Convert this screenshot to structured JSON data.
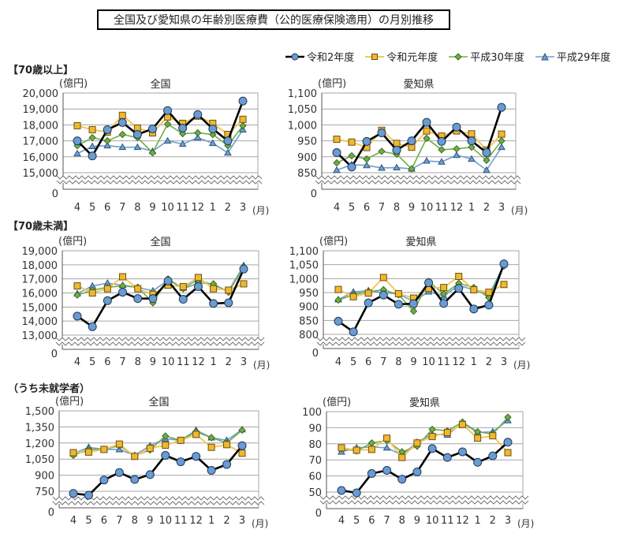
{
  "title": "全国及び愛知県の年齢別医療費（公的医療保険適用）の月別推移",
  "sections": [
    "【70歳以上】",
    "【70歳未満】",
    "（うち未就学者）"
  ],
  "legend": [
    {
      "name": "令和2年度",
      "color": "#000000",
      "marker": "circle",
      "marker_color": "#6a9bd1"
    },
    {
      "name": "令和元年度",
      "color": "#f4c75a",
      "marker": "square",
      "marker_color": "#f0b82e"
    },
    {
      "name": "平成30年度",
      "color": "#70ad47",
      "marker": "diamond",
      "marker_color": "#70ad47"
    },
    {
      "name": "平成29年度",
      "color": "#6f9fd0",
      "marker": "triangle",
      "marker_color": "#6f9fd0"
    }
  ],
  "chart_data": [
    {
      "type": "line",
      "section": "【70歳以上】",
      "title": "全国",
      "ylabel": "(億円)",
      "xlabel": "(月)",
      "categories": [
        "4",
        "5",
        "6",
        "7",
        "8",
        "9",
        "10",
        "11",
        "12",
        "1",
        "2",
        "3"
      ],
      "yticks": [
        "20,000",
        "19,000",
        "18,000",
        "17,000",
        "16,000",
        "15,000"
      ],
      "ymin_label": "0",
      "ylim": [
        15000,
        20000
      ],
      "axis_break": true,
      "grid": true,
      "series": [
        {
          "name": "令和2年度",
          "values": [
            17000,
            16050,
            17700,
            18150,
            17400,
            17750,
            18900,
            17800,
            18650,
            17750,
            17000,
            19500
          ]
        },
        {
          "name": "令和元年度",
          "values": [
            17950,
            17700,
            17550,
            18600,
            17800,
            17500,
            18500,
            18100,
            18550,
            18100,
            17400,
            18350
          ]
        },
        {
          "name": "平成30年度",
          "values": [
            16700,
            17200,
            17000,
            17400,
            17200,
            16250,
            18050,
            17450,
            17500,
            17400,
            16700,
            17950
          ]
        },
        {
          "name": "平成29年度",
          "values": [
            16200,
            16650,
            16700,
            16600,
            16600,
            16350,
            17000,
            16800,
            17200,
            16850,
            16250,
            17700
          ]
        }
      ]
    },
    {
      "type": "line",
      "section": "【70歳以上】",
      "title": "愛知県",
      "ylabel": "(億円)",
      "xlabel": "(月)",
      "categories": [
        "4",
        "5",
        "6",
        "7",
        "8",
        "9",
        "10",
        "11",
        "12",
        "1",
        "2",
        "3"
      ],
      "yticks": [
        "1,100",
        "1,050",
        "1,000",
        "950",
        "900",
        "850"
      ],
      "ymin_label": "0",
      "ylim": [
        850,
        1100
      ],
      "axis_break": true,
      "grid": true,
      "series": [
        {
          "name": "令和2年度",
          "values": [
            913,
            868,
            948,
            975,
            921,
            950,
            1008,
            948,
            993,
            950,
            913,
            1055
          ]
        },
        {
          "name": "令和元年度",
          "values": [
            955,
            946,
            929,
            983,
            942,
            930,
            981,
            965,
            981,
            972,
            921,
            971
          ]
        },
        {
          "name": "平成30年度",
          "values": [
            881,
            903,
            893,
            917,
            908,
            862,
            958,
            922,
            925,
            930,
            889,
            950
          ]
        },
        {
          "name": "平成29年度",
          "values": [
            858,
            875,
            873,
            865,
            866,
            862,
            887,
            884,
            905,
            893,
            858,
            930
          ]
        }
      ]
    },
    {
      "type": "line",
      "section": "【70歳未満】",
      "title": "全国",
      "ylabel": "(億円)",
      "xlabel": "(月)",
      "categories": [
        "4",
        "5",
        "6",
        "7",
        "8",
        "9",
        "10",
        "11",
        "12",
        "1",
        "2",
        "3"
      ],
      "yticks": [
        "19,000",
        "18,000",
        "17,000",
        "16,000",
        "15,000",
        "14,000",
        "13,000"
      ],
      "ymin_label": "0",
      "ylim": [
        13000,
        19000
      ],
      "axis_break": true,
      "grid": true,
      "series": [
        {
          "name": "令和2年度",
          "values": [
            14350,
            13600,
            15450,
            16050,
            15600,
            15600,
            16850,
            15550,
            16450,
            15250,
            15300,
            17700
          ]
        },
        {
          "name": "令和元年度",
          "values": [
            16500,
            16000,
            16300,
            17150,
            16300,
            15900,
            16550,
            16450,
            17100,
            16300,
            16200,
            16650
          ]
        },
        {
          "name": "平成30年度",
          "values": [
            15850,
            16200,
            16400,
            16500,
            16400,
            15300,
            17000,
            16300,
            16700,
            16650,
            16050,
            17850
          ]
        },
        {
          "name": "平成29年度",
          "values": [
            15950,
            16500,
            16700,
            16550,
            16400,
            16150,
            16900,
            16350,
            16950,
            16550,
            16150,
            17950
          ]
        }
      ]
    },
    {
      "type": "line",
      "section": "【70歳未満】",
      "title": "愛知県",
      "ylabel": "(億円)",
      "xlabel": "(月)",
      "categories": [
        "4",
        "5",
        "6",
        "7",
        "8",
        "9",
        "10",
        "11",
        "12",
        "1",
        "2",
        "3"
      ],
      "yticks": [
        "1,100",
        "1,050",
        "1,000",
        "950",
        "900",
        "850",
        "800"
      ],
      "ymin_label": "0",
      "ylim": [
        800,
        1100
      ],
      "axis_break": true,
      "grid": true,
      "series": [
        {
          "name": "令和2年度",
          "values": [
            847,
            809,
            913,
            941,
            908,
            910,
            985,
            911,
            965,
            891,
            905,
            1053
          ]
        },
        {
          "name": "令和元年度",
          "values": [
            961,
            935,
            948,
            1004,
            946,
            930,
            965,
            968,
            1008,
            960,
            951,
            979
          ]
        },
        {
          "name": "平成30年度",
          "values": [
            923,
            942,
            953,
            960,
            942,
            883,
            990,
            945,
            983,
            968,
            932,
            1045
          ]
        },
        {
          "name": "平成29年度",
          "values": [
            925,
            952,
            957,
            950,
            945,
            918,
            953,
            938,
            975,
            960,
            940,
            1050
          ]
        }
      ]
    },
    {
      "type": "line",
      "section": "（うち未就学者）",
      "title": "全国",
      "ylabel": "(億円)",
      "xlabel": "(月)",
      "categories": [
        "4",
        "5",
        "6",
        "7",
        "8",
        "9",
        "10",
        "11",
        "12",
        "1",
        "2",
        "3"
      ],
      "yticks": [
        "1,500",
        "1,350",
        "1,200",
        "1,050",
        "900",
        "750"
      ],
      "ymin_label": "0",
      "ylim": [
        750,
        1500
      ],
      "axis_break": true,
      "grid": true,
      "series": [
        {
          "name": "令和2年度",
          "values": [
            730,
            713,
            855,
            925,
            860,
            905,
            1085,
            1025,
            1075,
            945,
            1000,
            1175
          ]
        },
        {
          "name": "令和元年度",
          "values": [
            1110,
            1115,
            1140,
            1190,
            1075,
            1150,
            1180,
            1225,
            1280,
            1160,
            1185,
            1105
          ]
        },
        {
          "name": "平成30年度",
          "values": [
            1085,
            1140,
            1140,
            1175,
            1080,
            1135,
            1265,
            1225,
            1305,
            1250,
            1200,
            1320
          ]
        },
        {
          "name": "平成29年度",
          "values": [
            1100,
            1160,
            1140,
            1140,
            1085,
            1175,
            1240,
            1225,
            1320,
            1250,
            1225,
            1325
          ]
        }
      ]
    },
    {
      "type": "line",
      "section": "（うち未就学者）",
      "title": "愛知県",
      "ylabel": "(億円)",
      "xlabel": "(月)",
      "categories": [
        "4",
        "5",
        "6",
        "7",
        "8",
        "9",
        "10",
        "11",
        "12",
        "1",
        "2",
        "3"
      ],
      "yticks": [
        "100",
        "90",
        "80",
        "70",
        "60",
        "50"
      ],
      "ymin_label": "0",
      "ylim": [
        50,
        100
      ],
      "axis_break": true,
      "grid": true,
      "series": [
        {
          "name": "令和2年度",
          "values": [
            51,
            49.5,
            61.5,
            63.5,
            58,
            62.5,
            77,
            71.5,
            75,
            68.5,
            72.5,
            81
          ]
        },
        {
          "name": "令和元年度",
          "values": [
            77.5,
            76,
            76.5,
            83.5,
            71.5,
            80.5,
            84.5,
            87,
            92,
            83.5,
            85,
            74.5
          ]
        },
        {
          "name": "平成30年度",
          "values": [
            77,
            75.5,
            80.5,
            82,
            75,
            78.5,
            89,
            88,
            93.5,
            87.5,
            86,
            96.5
          ]
        },
        {
          "name": "平成29年度",
          "values": [
            75,
            77.5,
            78,
            77.5,
            73,
            81,
            86,
            85.5,
            93,
            87,
            87.5,
            94.5
          ]
        }
      ]
    }
  ]
}
